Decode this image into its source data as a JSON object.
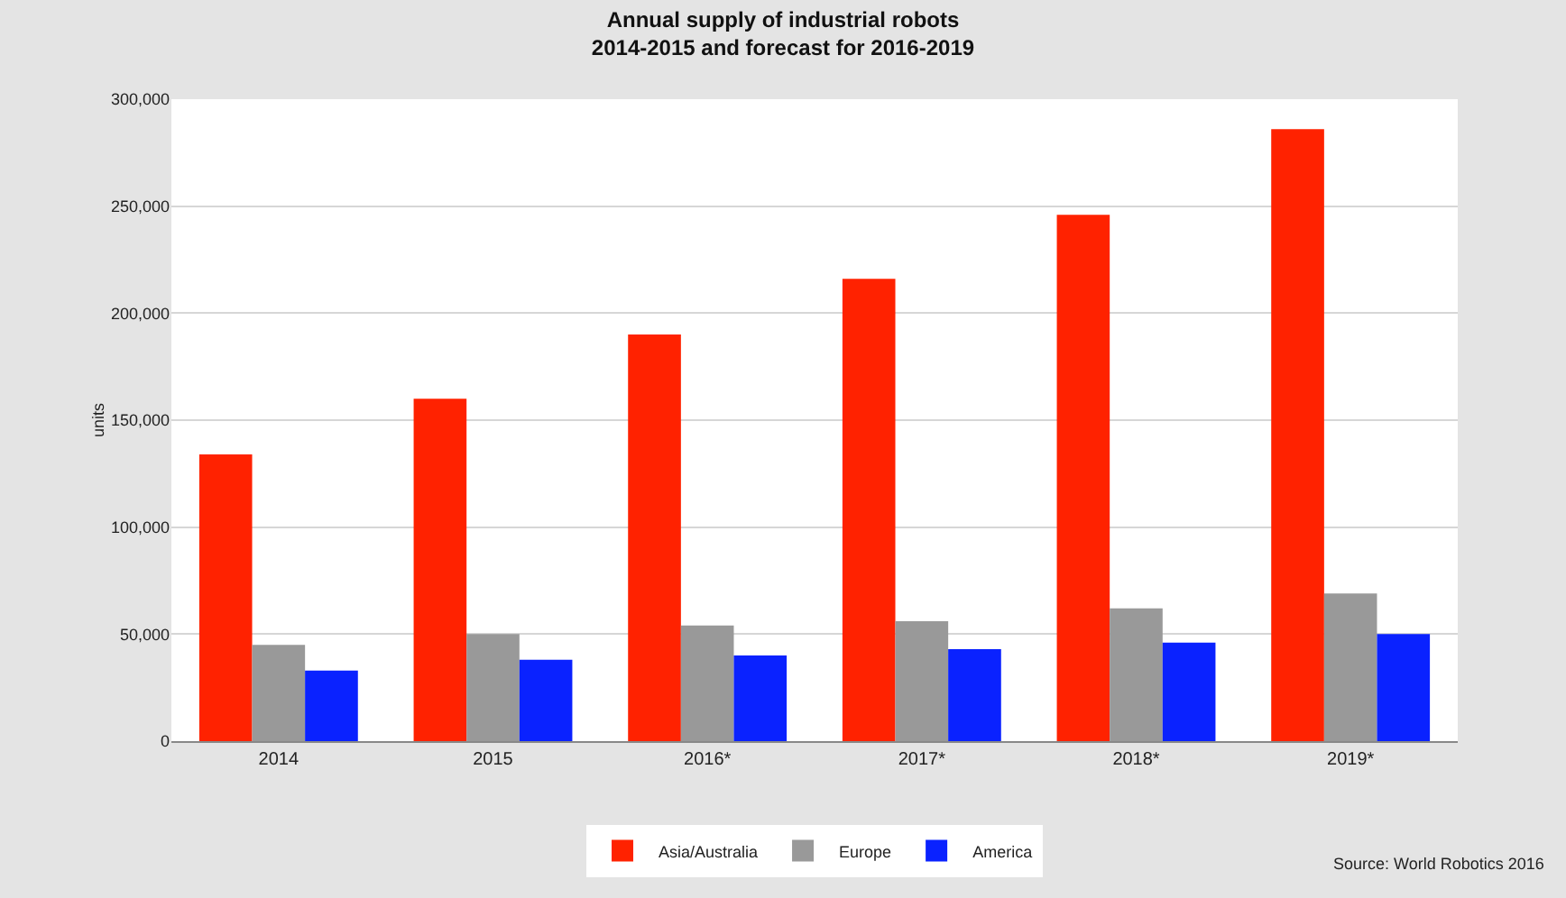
{
  "chart_data": {
    "type": "bar",
    "title": "Annual supply of industrial robots\n2014-2015 and forecast for 2016-2019",
    "ylabel": "units",
    "categories": [
      "2014",
      "2015",
      "2016*",
      "2017*",
      "2018*",
      "2019*"
    ],
    "series": [
      {
        "name": "Asia/Australia",
        "color": "#ff2200",
        "values": [
          134000,
          160000,
          190000,
          216000,
          246000,
          286000
        ]
      },
      {
        "name": "Europe",
        "color": "#999999",
        "values": [
          45000,
          50000,
          54000,
          56000,
          62000,
          69000
        ]
      },
      {
        "name": "America",
        "color": "#0a22ff",
        "values": [
          33000,
          38000,
          40000,
          43000,
          46000,
          50000
        ]
      }
    ],
    "ylim": [
      0,
      300000
    ],
    "yticks": [
      {
        "value": 0,
        "label": "0"
      },
      {
        "value": 50000,
        "label": "50,000"
      },
      {
        "value": 100000,
        "label": "100,000"
      },
      {
        "value": 150000,
        "label": "150,000"
      },
      {
        "value": 200000,
        "label": "200,000"
      },
      {
        "value": 250000,
        "label": "250,000"
      },
      {
        "value": 300000,
        "label": "300,000"
      }
    ],
    "grid": "y",
    "legend": "bottom",
    "annotations": [
      "Source: World Robotics 2016"
    ]
  }
}
